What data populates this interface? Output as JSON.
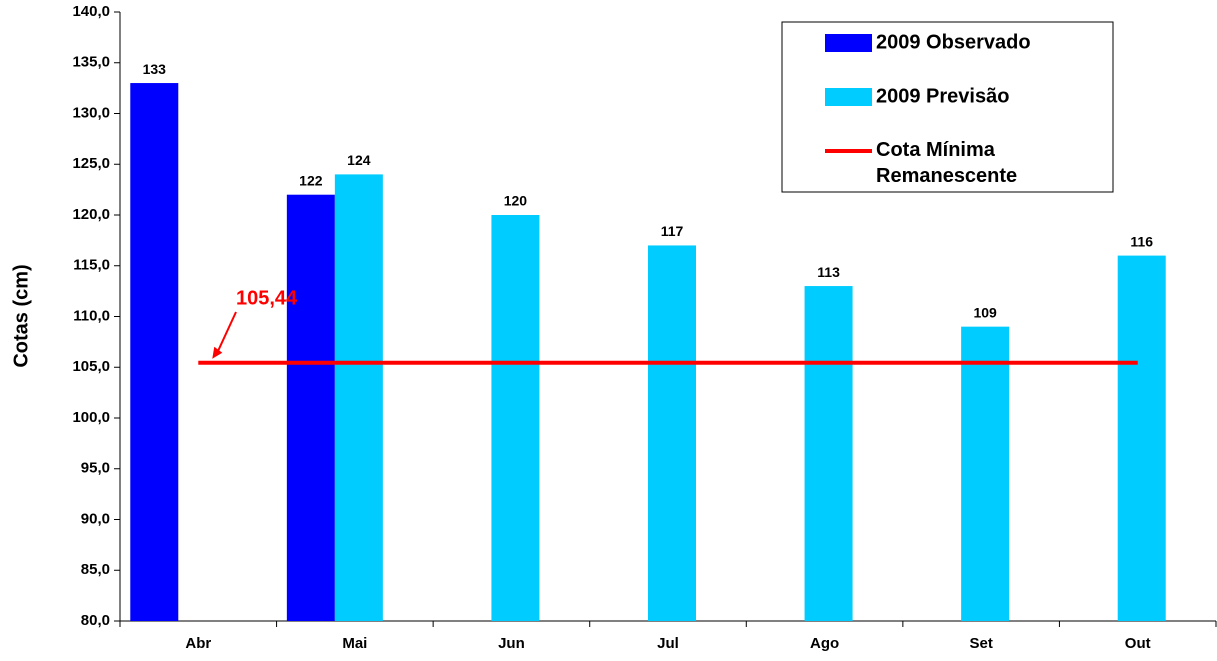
{
  "chart_data": {
    "type": "bar",
    "y_label": "Cotas (cm)",
    "categories": [
      "Abr",
      "Mai",
      "Jun",
      "Jul",
      "Ago",
      "Set",
      "Out"
    ],
    "series": [
      {
        "name": "2009 Observado",
        "color": "#0000ff",
        "values": [
          133,
          122,
          null,
          null,
          null,
          null,
          null
        ]
      },
      {
        "name": "2009 Previsão",
        "color": "#00ccff",
        "values": [
          null,
          124,
          120,
          117,
          113,
          109,
          116
        ]
      },
      {
        "name": "Cota Mínima Remanescente",
        "type": "line",
        "color": "#ff0000",
        "values": [
          105.44,
          105.44,
          105.44,
          105.44,
          105.44,
          105.44,
          105.44
        ]
      }
    ],
    "annotation": "105,44",
    "annotation_color": "#ff0000",
    "ylim": [
      80,
      140
    ],
    "yticks": [
      {
        "value": 80,
        "label": "80,0"
      },
      {
        "value": 85,
        "label": "85,0"
      },
      {
        "value": 90,
        "label": "90,0"
      },
      {
        "value": 95,
        "label": "95,0"
      },
      {
        "value": 100,
        "label": "100,0"
      },
      {
        "value": 105,
        "label": "105,0"
      },
      {
        "value": 110,
        "label": "110,0"
      },
      {
        "value": 115,
        "label": "115,0"
      },
      {
        "value": 120,
        "label": "120,0"
      },
      {
        "value": 125,
        "label": "125,0"
      },
      {
        "value": 130,
        "label": "130,0"
      },
      {
        "value": 135,
        "label": "135,0"
      },
      {
        "value": 140,
        "label": "140,0"
      }
    ]
  }
}
